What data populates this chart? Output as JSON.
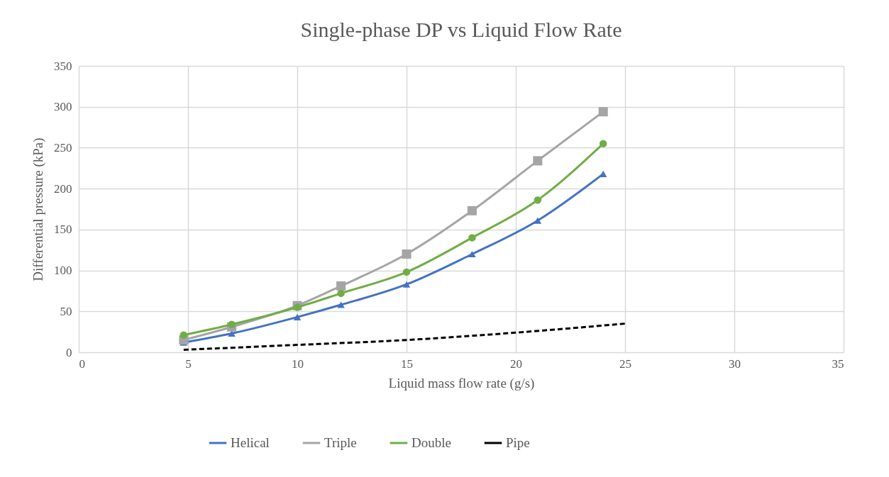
{
  "chart_data": {
    "type": "line",
    "title": "Single-phase DP vs Liquid Flow Rate",
    "xlabel": "Liquid mass flow rate (g/s)",
    "ylabel": "Differential pressure (kPa)",
    "x": [
      4.8,
      7,
      10,
      12,
      15,
      18,
      21,
      24
    ],
    "xlim": [
      0,
      35
    ],
    "xticks": [
      0,
      5,
      10,
      15,
      20,
      25,
      30,
      35
    ],
    "ylim": [
      0,
      350
    ],
    "yticks": [
      0,
      50,
      100,
      150,
      200,
      250,
      300,
      350
    ],
    "grid": true,
    "legend": "bottom",
    "series": [
      {
        "name": "Helical",
        "color": "#4472c4",
        "marker": "triangle",
        "values": [
          12,
          23,
          43,
          58,
          83,
          120,
          161,
          218
        ]
      },
      {
        "name": "Triple",
        "color": "#a5a5a5",
        "marker": "square",
        "values": [
          15,
          31,
          57,
          81,
          120,
          173,
          234,
          294
        ]
      },
      {
        "name": "Double",
        "color": "#70ad47",
        "marker": "circle",
        "values": [
          21,
          34,
          55,
          72,
          98,
          140,
          186,
          255
        ]
      },
      {
        "name": "Pipe",
        "color": "#000000",
        "marker": "none",
        "line_style": "dashed",
        "x": [
          4.8,
          10,
          15,
          20,
          25
        ],
        "values": [
          3,
          9,
          15,
          24,
          35
        ]
      }
    ]
  }
}
